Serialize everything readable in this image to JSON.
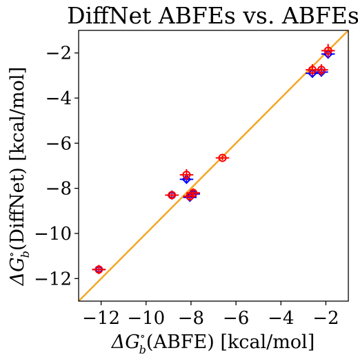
{
  "chart_data": {
    "type": "scatter",
    "title": "DiffNet ABFEs vs. ABFEs",
    "xlabel": {
      "prefix": "ΔG",
      "sup": "∘",
      "sub": "b",
      "suffix": "(ABFE) [kcal/mol]"
    },
    "ylabel": {
      "prefix": "ΔG",
      "sup": "∘",
      "sub": "b",
      "suffix": "(DiffNet) [kcal/mol]"
    },
    "xlim": [
      -13,
      -1
    ],
    "ylim": [
      -13,
      -1
    ],
    "xticks": [
      -12,
      -10,
      -8,
      -6,
      -4,
      -2
    ],
    "yticks": [
      -12,
      -10,
      -8,
      -6,
      -4,
      -2
    ],
    "xtick_labels": [
      "−12",
      "−10",
      "−8",
      "−6",
      "−4",
      "−2"
    ],
    "ytick_labels": [
      "−12",
      "−10",
      "−8",
      "−6",
      "−4",
      "−2"
    ],
    "grid": false,
    "identity_line": {
      "color": "#f5a623"
    },
    "series": [
      {
        "marker": "diamond",
        "color": "#0000ff",
        "points": [
          {
            "x": -12.1,
            "y": -11.6,
            "xerr": 0.3,
            "yerr": 0.15
          },
          {
            "x": -8.85,
            "y": -8.3,
            "xerr": 0.3,
            "yerr": 0.15
          },
          {
            "x": -8.2,
            "y": -7.6,
            "xerr": 0.3,
            "yerr": 0.2
          },
          {
            "x": -8.05,
            "y": -8.4,
            "xerr": 0.3,
            "yerr": 0.15
          },
          {
            "x": -7.9,
            "y": -8.25,
            "xerr": 0.3,
            "yerr": 0.15
          },
          {
            "x": -2.6,
            "y": -2.9,
            "xerr": 0.3,
            "yerr": 0.2
          },
          {
            "x": -2.2,
            "y": -2.85,
            "xerr": 0.3,
            "yerr": 0.2
          },
          {
            "x": -1.9,
            "y": -2.05,
            "xerr": 0.3,
            "yerr": 0.2
          }
        ]
      },
      {
        "marker": "circle",
        "color": "#ff0000",
        "points": [
          {
            "x": -12.1,
            "y": -11.6,
            "xerr": 0.3,
            "yerr": 0.2
          },
          {
            "x": -8.85,
            "y": -8.3,
            "xerr": 0.3,
            "yerr": 0.15
          },
          {
            "x": -8.2,
            "y": -7.4,
            "xerr": 0.3,
            "yerr": 0.25
          },
          {
            "x": -8.05,
            "y": -8.35,
            "xerr": 0.3,
            "yerr": 0.2
          },
          {
            "x": -7.9,
            "y": -8.2,
            "xerr": 0.3,
            "yerr": 0.2
          },
          {
            "x": -6.6,
            "y": -6.65,
            "xerr": 0.3,
            "yerr": 0.1
          },
          {
            "x": -2.6,
            "y": -2.75,
            "xerr": 0.3,
            "yerr": 0.25
          },
          {
            "x": -2.2,
            "y": -2.75,
            "xerr": 0.3,
            "yerr": 0.25
          },
          {
            "x": -1.9,
            "y": -1.9,
            "xerr": 0.3,
            "yerr": 0.3
          }
        ]
      }
    ]
  }
}
